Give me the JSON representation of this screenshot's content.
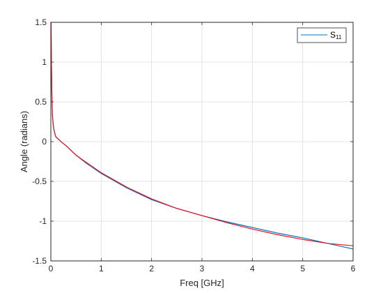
{
  "chart_data": {
    "type": "line",
    "title": "",
    "xlabel": "Freq [GHz]",
    "ylabel": "Angle (radians)",
    "xlim": [
      0,
      6
    ],
    "ylim": [
      -1.5,
      1.5
    ],
    "xticks": [
      0,
      1,
      2,
      3,
      4,
      5,
      6
    ],
    "yticks": [
      -1.5,
      -1,
      -0.5,
      0,
      0.5,
      1,
      1.5
    ],
    "xtick_labels": [
      "0",
      "1",
      "2",
      "3",
      "4",
      "5",
      "6"
    ],
    "ytick_labels": [
      "-1.5",
      "-1",
      "-0.5",
      "0",
      "0.5",
      "1",
      "1.5"
    ],
    "grid": true,
    "legend": {
      "location": "top-right",
      "text": "S",
      "subscript": "11"
    },
    "series": [
      {
        "name": "S11",
        "color": "#0072BD",
        "x": [
          0.005,
          0.01,
          0.02,
          0.03,
          0.05,
          0.08,
          0.1,
          0.15,
          0.2,
          0.3,
          0.35,
          0.4,
          0.5,
          0.7,
          1.0,
          1.5,
          2.0,
          2.5,
          3.0,
          3.5,
          4.0,
          4.5,
          5.0,
          5.5,
          6.0
        ],
        "y": [
          1.5,
          1.1,
          0.6,
          0.35,
          0.19,
          0.1,
          0.06,
          0.03,
          0.0,
          -0.05,
          -0.08,
          -0.11,
          -0.17,
          -0.27,
          -0.4,
          -0.58,
          -0.73,
          -0.84,
          -0.93,
          -1.01,
          -1.08,
          -1.15,
          -1.21,
          -1.28,
          -1.35
        ]
      },
      {
        "name": "",
        "color": "#E8101C",
        "x": [
          0.005,
          0.01,
          0.02,
          0.03,
          0.05,
          0.08,
          0.1,
          0.15,
          0.2,
          0.3,
          0.35,
          0.4,
          0.5,
          0.7,
          1.0,
          1.5,
          2.0,
          2.5,
          3.0,
          3.5,
          4.0,
          4.5,
          5.0,
          5.5,
          6.0
        ],
        "y": [
          1.5,
          1.1,
          0.6,
          0.35,
          0.19,
          0.1,
          0.06,
          0.03,
          0.0,
          -0.05,
          -0.08,
          -0.11,
          -0.17,
          -0.26,
          -0.39,
          -0.57,
          -0.72,
          -0.84,
          -0.93,
          -1.02,
          -1.1,
          -1.17,
          -1.23,
          -1.28,
          -1.31
        ]
      }
    ]
  }
}
